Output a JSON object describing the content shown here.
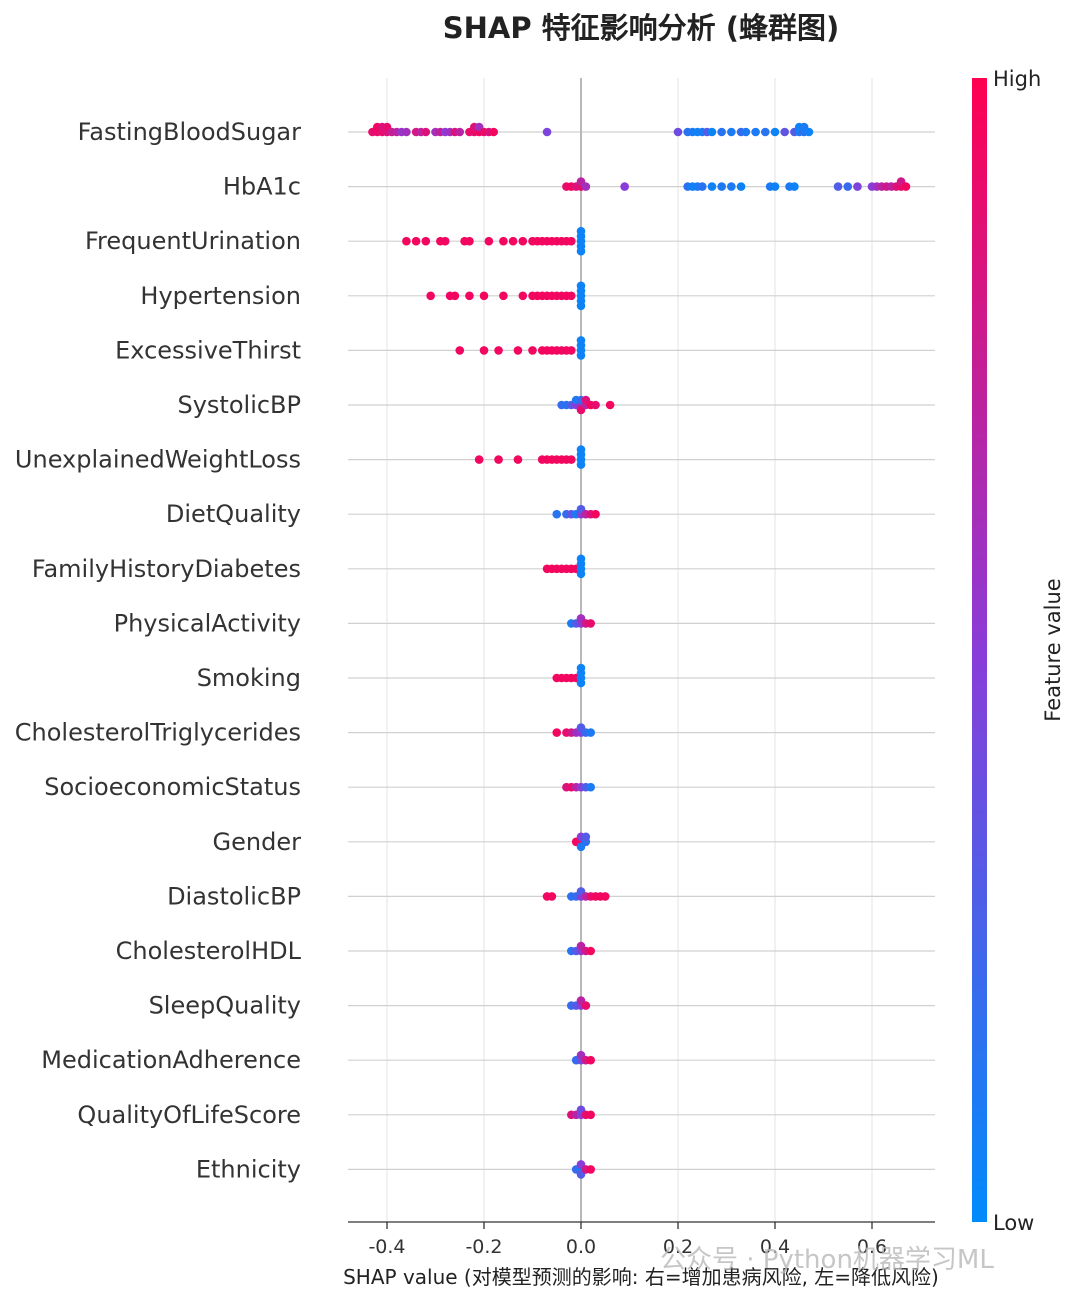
{
  "chart_data": {
    "type": "scatter",
    "subtype": "shap-beeswarm",
    "title": "SHAP 特征影响分析 (蜂群图)",
    "xlabel": "SHAP value (对模型预测的影响: 右=增加患病风险, 左=降低风险)",
    "xlim": [
      -0.48,
      0.74
    ],
    "xticks": [
      -0.4,
      -0.2,
      0.0,
      0.2,
      0.4,
      0.6
    ],
    "xtick_labels": [
      "-0.4",
      "-0.2",
      "0.0",
      "0.2",
      "0.4",
      "0.6"
    ],
    "grid": true,
    "colorbar": {
      "label": "Feature value",
      "high_label": "High",
      "low_label": "Low",
      "high_color": "#ff0051",
      "low_color": "#008bfb"
    },
    "features": [
      {
        "name": "FastingBloodSugar",
        "points": [
          [
            -0.43,
            0.9
          ],
          [
            -0.42,
            0.9
          ],
          [
            -0.42,
            0.95
          ],
          [
            -0.41,
            0.9
          ],
          [
            -0.41,
            0.85
          ],
          [
            -0.4,
            0.85
          ],
          [
            -0.4,
            0.9
          ],
          [
            -0.39,
            0.75
          ],
          [
            -0.38,
            0.7
          ],
          [
            -0.37,
            0.55
          ],
          [
            -0.36,
            0.6
          ],
          [
            -0.34,
            0.8
          ],
          [
            -0.33,
            0.7
          ],
          [
            -0.32,
            0.85
          ],
          [
            -0.3,
            0.6
          ],
          [
            -0.29,
            0.75
          ],
          [
            -0.28,
            0.5
          ],
          [
            -0.27,
            0.6
          ],
          [
            -0.26,
            0.85
          ],
          [
            -0.25,
            0.7
          ],
          [
            -0.23,
            0.9
          ],
          [
            -0.22,
            0.9
          ],
          [
            -0.22,
            0.85
          ],
          [
            -0.21,
            0.95
          ],
          [
            -0.21,
            0.6
          ],
          [
            -0.2,
            0.9
          ],
          [
            -0.19,
            0.85
          ],
          [
            -0.18,
            0.95
          ],
          [
            -0.07,
            0.45
          ],
          [
            0.2,
            0.4
          ],
          [
            0.22,
            0.15
          ],
          [
            0.23,
            0.1
          ],
          [
            0.24,
            0.05
          ],
          [
            0.25,
            0.1
          ],
          [
            0.26,
            0.3
          ],
          [
            0.27,
            0.05
          ],
          [
            0.29,
            0.15
          ],
          [
            0.31,
            0.1
          ],
          [
            0.33,
            0.2
          ],
          [
            0.34,
            0.1
          ],
          [
            0.36,
            0.1
          ],
          [
            0.38,
            0.15
          ],
          [
            0.4,
            0.05
          ],
          [
            0.42,
            0.35
          ],
          [
            0.44,
            0.3
          ],
          [
            0.45,
            0.1
          ],
          [
            0.45,
            0.05
          ],
          [
            0.46,
            0.15
          ],
          [
            0.46,
            0.1
          ],
          [
            0.47,
            0.05
          ]
        ]
      },
      {
        "name": "HbA1c",
        "points": [
          [
            -0.03,
            0.9
          ],
          [
            -0.02,
            0.95
          ],
          [
            -0.01,
            0.85
          ],
          [
            0.0,
            0.9
          ],
          [
            0.0,
            0.7
          ],
          [
            0.01,
            0.6
          ],
          [
            0.09,
            0.5
          ],
          [
            0.22,
            0.15
          ],
          [
            0.23,
            0.05
          ],
          [
            0.24,
            0.1
          ],
          [
            0.25,
            0.15
          ],
          [
            0.27,
            0.05
          ],
          [
            0.29,
            0.1
          ],
          [
            0.31,
            0.1
          ],
          [
            0.33,
            0.05
          ],
          [
            0.39,
            0.1
          ],
          [
            0.4,
            0.05
          ],
          [
            0.43,
            0.1
          ],
          [
            0.44,
            0.05
          ],
          [
            0.53,
            0.3
          ],
          [
            0.55,
            0.2
          ],
          [
            0.57,
            0.45
          ],
          [
            0.6,
            0.5
          ],
          [
            0.61,
            0.6
          ],
          [
            0.62,
            0.7
          ],
          [
            0.63,
            0.8
          ],
          [
            0.64,
            0.7
          ],
          [
            0.65,
            0.85
          ],
          [
            0.66,
            0.9
          ],
          [
            0.66,
            0.8
          ],
          [
            0.67,
            0.95
          ]
        ]
      },
      {
        "name": "FrequentUrination",
        "points": [
          [
            -0.36,
            0.95
          ],
          [
            -0.34,
            0.95
          ],
          [
            -0.32,
            0.95
          ],
          [
            -0.29,
            0.95
          ],
          [
            -0.28,
            0.95
          ],
          [
            -0.24,
            0.95
          ],
          [
            -0.23,
            0.95
          ],
          [
            -0.19,
            0.95
          ],
          [
            -0.16,
            0.95
          ],
          [
            -0.14,
            0.95
          ],
          [
            -0.12,
            0.95
          ],
          [
            -0.1,
            0.95
          ],
          [
            -0.09,
            0.95
          ],
          [
            -0.08,
            0.95
          ],
          [
            -0.07,
            0.95
          ],
          [
            -0.06,
            0.95
          ],
          [
            -0.05,
            0.95
          ],
          [
            -0.04,
            0.95
          ],
          [
            -0.03,
            0.95
          ],
          [
            -0.02,
            0.95
          ],
          [
            0.0,
            0.05
          ],
          [
            0.0,
            0.05
          ],
          [
            0.0,
            0.05
          ],
          [
            0.0,
            0.05
          ],
          [
            0.0,
            0.05
          ]
        ]
      },
      {
        "name": "Hypertension",
        "points": [
          [
            -0.31,
            0.95
          ],
          [
            -0.27,
            0.95
          ],
          [
            -0.26,
            0.95
          ],
          [
            -0.23,
            0.95
          ],
          [
            -0.2,
            0.95
          ],
          [
            -0.16,
            0.95
          ],
          [
            -0.12,
            0.95
          ],
          [
            -0.1,
            0.95
          ],
          [
            -0.09,
            0.95
          ],
          [
            -0.08,
            0.95
          ],
          [
            -0.07,
            0.95
          ],
          [
            -0.06,
            0.95
          ],
          [
            -0.05,
            0.95
          ],
          [
            -0.04,
            0.95
          ],
          [
            -0.03,
            0.95
          ],
          [
            -0.02,
            0.95
          ],
          [
            0.0,
            0.05
          ],
          [
            0.0,
            0.05
          ],
          [
            0.0,
            0.05
          ],
          [
            0.0,
            0.05
          ],
          [
            0.0,
            0.05
          ]
        ]
      },
      {
        "name": "ExcessiveThirst",
        "points": [
          [
            -0.25,
            0.95
          ],
          [
            -0.2,
            0.95
          ],
          [
            -0.17,
            0.95
          ],
          [
            -0.13,
            0.95
          ],
          [
            -0.1,
            0.95
          ],
          [
            -0.08,
            0.95
          ],
          [
            -0.07,
            0.95
          ],
          [
            -0.06,
            0.95
          ],
          [
            -0.05,
            0.95
          ],
          [
            -0.04,
            0.95
          ],
          [
            -0.03,
            0.95
          ],
          [
            -0.02,
            0.95
          ],
          [
            0.0,
            0.05
          ],
          [
            0.0,
            0.05
          ],
          [
            0.0,
            0.05
          ],
          [
            0.0,
            0.05
          ]
        ]
      },
      {
        "name": "SystolicBP",
        "points": [
          [
            -0.04,
            0.2
          ],
          [
            -0.03,
            0.15
          ],
          [
            -0.02,
            0.3
          ],
          [
            -0.01,
            0.5
          ],
          [
            -0.01,
            0.1
          ],
          [
            0.0,
            0.6
          ],
          [
            0.0,
            0.2
          ],
          [
            0.0,
            0.9
          ],
          [
            0.01,
            0.7
          ],
          [
            0.01,
            0.85
          ],
          [
            0.02,
            0.95
          ],
          [
            0.03,
            0.9
          ],
          [
            0.06,
            0.95
          ]
        ]
      },
      {
        "name": "UnexplainedWeightLoss",
        "points": [
          [
            -0.21,
            0.95
          ],
          [
            -0.17,
            0.95
          ],
          [
            -0.13,
            0.95
          ],
          [
            -0.08,
            0.95
          ],
          [
            -0.07,
            0.95
          ],
          [
            -0.06,
            0.95
          ],
          [
            -0.05,
            0.95
          ],
          [
            -0.04,
            0.95
          ],
          [
            -0.03,
            0.95
          ],
          [
            -0.02,
            0.95
          ],
          [
            0.0,
            0.05
          ],
          [
            0.0,
            0.05
          ],
          [
            0.0,
            0.05
          ],
          [
            0.0,
            0.05
          ]
        ]
      },
      {
        "name": "DietQuality",
        "points": [
          [
            -0.05,
            0.15
          ],
          [
            -0.03,
            0.2
          ],
          [
            -0.02,
            0.35
          ],
          [
            -0.01,
            0.1
          ],
          [
            0.0,
            0.5
          ],
          [
            0.0,
            0.3
          ],
          [
            0.01,
            0.7
          ],
          [
            0.02,
            0.85
          ],
          [
            0.03,
            0.95
          ]
        ]
      },
      {
        "name": "FamilyHistoryDiabetes",
        "points": [
          [
            -0.07,
            0.95
          ],
          [
            -0.06,
            0.95
          ],
          [
            -0.05,
            0.95
          ],
          [
            -0.04,
            0.95
          ],
          [
            -0.03,
            0.95
          ],
          [
            -0.02,
            0.95
          ],
          [
            -0.01,
            0.95
          ],
          [
            0.0,
            0.05
          ],
          [
            0.0,
            0.05
          ],
          [
            0.0,
            0.05
          ],
          [
            0.0,
            0.05
          ]
        ]
      },
      {
        "name": "PhysicalActivity",
        "points": [
          [
            -0.02,
            0.1
          ],
          [
            -0.01,
            0.3
          ],
          [
            0.0,
            0.5
          ],
          [
            0.0,
            0.6
          ],
          [
            0.01,
            0.8
          ],
          [
            0.02,
            0.9
          ]
        ]
      },
      {
        "name": "Smoking",
        "points": [
          [
            -0.05,
            0.95
          ],
          [
            -0.04,
            0.95
          ],
          [
            -0.03,
            0.95
          ],
          [
            -0.02,
            0.95
          ],
          [
            -0.01,
            0.95
          ],
          [
            0.0,
            0.05
          ],
          [
            0.0,
            0.05
          ],
          [
            0.0,
            0.05
          ],
          [
            0.0,
            0.05
          ]
        ]
      },
      {
        "name": "CholesterolTriglycerides",
        "points": [
          [
            -0.05,
            0.95
          ],
          [
            -0.03,
            0.9
          ],
          [
            -0.02,
            0.8
          ],
          [
            -0.01,
            0.6
          ],
          [
            0.0,
            0.5
          ],
          [
            0.0,
            0.3
          ],
          [
            0.01,
            0.2
          ],
          [
            0.02,
            0.1
          ]
        ]
      },
      {
        "name": "SocioeconomicStatus",
        "points": [
          [
            -0.03,
            0.85
          ],
          [
            -0.02,
            0.9
          ],
          [
            -0.01,
            0.7
          ],
          [
            0.0,
            0.5
          ],
          [
            0.01,
            0.3
          ],
          [
            0.02,
            0.1
          ]
        ]
      },
      {
        "name": "Gender",
        "points": [
          [
            -0.01,
            0.95
          ],
          [
            0.0,
            0.9
          ],
          [
            0.0,
            0.5
          ],
          [
            0.0,
            0.1
          ],
          [
            0.01,
            0.15
          ],
          [
            0.01,
            0.3
          ]
        ]
      },
      {
        "name": "DiastolicBP",
        "points": [
          [
            -0.07,
            0.95
          ],
          [
            -0.06,
            0.95
          ],
          [
            -0.02,
            0.15
          ],
          [
            -0.01,
            0.2
          ],
          [
            0.0,
            0.5
          ],
          [
            0.0,
            0.3
          ],
          [
            0.01,
            0.7
          ],
          [
            0.02,
            0.9
          ],
          [
            0.03,
            0.95
          ],
          [
            0.04,
            0.95
          ],
          [
            0.05,
            0.95
          ]
        ]
      },
      {
        "name": "CholesterolHDL",
        "points": [
          [
            -0.02,
            0.15
          ],
          [
            -0.01,
            0.3
          ],
          [
            0.0,
            0.5
          ],
          [
            0.0,
            0.7
          ],
          [
            0.01,
            0.8
          ],
          [
            0.02,
            0.95
          ]
        ]
      },
      {
        "name": "SleepQuality",
        "points": [
          [
            -0.02,
            0.2
          ],
          [
            -0.01,
            0.3
          ],
          [
            0.0,
            0.5
          ],
          [
            0.0,
            0.7
          ],
          [
            0.01,
            0.9
          ]
        ]
      },
      {
        "name": "MedicationAdherence",
        "points": [
          [
            -0.01,
            0.2
          ],
          [
            0.0,
            0.4
          ],
          [
            0.0,
            0.6
          ],
          [
            0.01,
            0.8
          ],
          [
            0.02,
            0.95
          ]
        ]
      },
      {
        "name": "QualityOfLifeScore",
        "points": [
          [
            -0.02,
            0.85
          ],
          [
            -0.01,
            0.7
          ],
          [
            0.0,
            0.5
          ],
          [
            0.0,
            0.4
          ],
          [
            0.01,
            0.9
          ],
          [
            0.02,
            0.95
          ]
        ]
      },
      {
        "name": "Ethnicity",
        "points": [
          [
            -0.01,
            0.2
          ],
          [
            0.0,
            0.1
          ],
          [
            0.0,
            0.5
          ],
          [
            0.0,
            0.3
          ],
          [
            0.01,
            0.8
          ],
          [
            0.02,
            0.95
          ]
        ]
      }
    ]
  },
  "watermark": "公众号 · Python机器学习ML"
}
